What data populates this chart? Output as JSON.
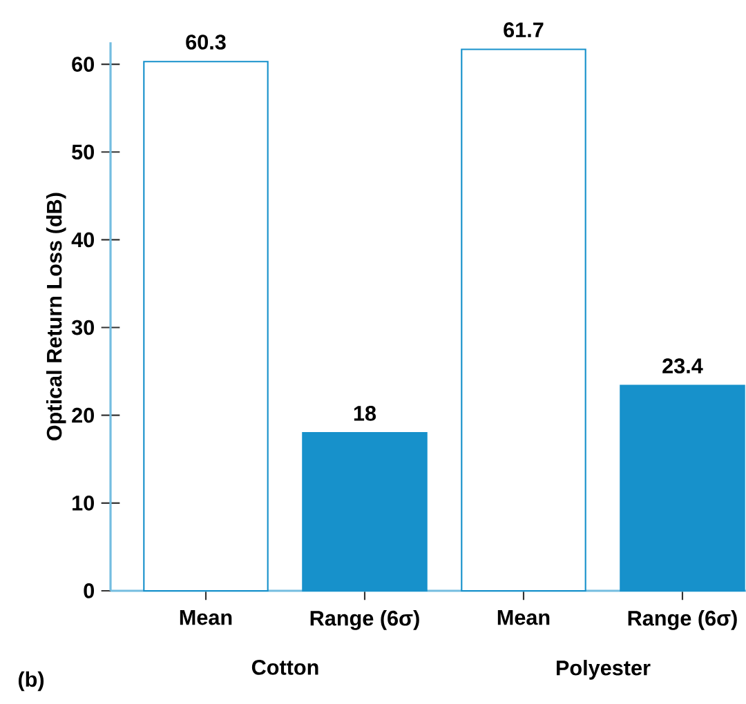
{
  "chart_data": {
    "type": "bar",
    "ylabel": "Optical Return Loss (dB)",
    "categories": [
      "Mean",
      "Range (6σ)",
      "Mean",
      "Range (6σ)"
    ],
    "values": [
      60.3,
      18,
      61.7,
      23.4
    ],
    "colors": [
      "#ffffff",
      "#1791cb",
      "#ffffff",
      "#1791cb"
    ],
    "data_labels": true,
    "ylim": [
      0,
      62.5
    ],
    "yticks": [
      0,
      10,
      20,
      30,
      40,
      50,
      60
    ],
    "grid": false,
    "annotations": [
      "Cotton",
      "Polyester",
      "(b)"
    ]
  }
}
